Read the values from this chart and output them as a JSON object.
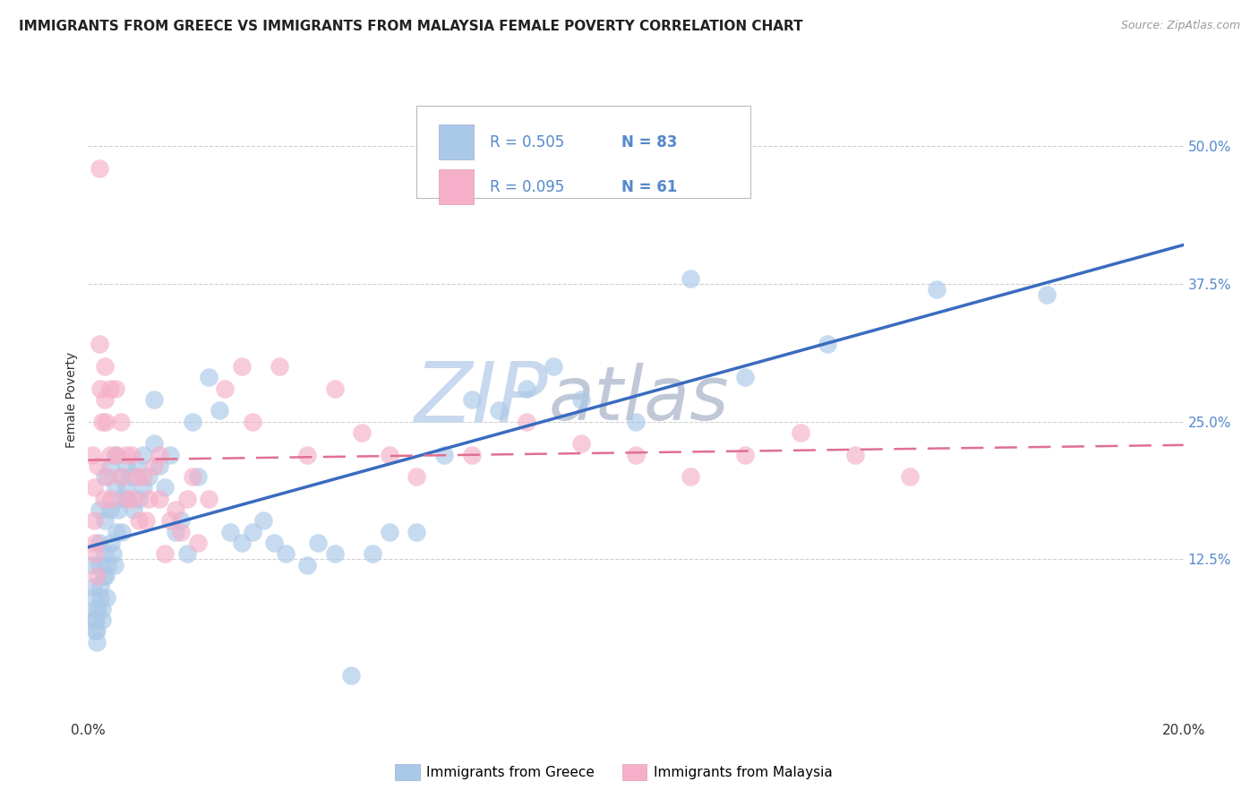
{
  "title": "IMMIGRANTS FROM GREECE VS IMMIGRANTS FROM MALAYSIA FEMALE POVERTY CORRELATION CHART",
  "source": "Source: ZipAtlas.com",
  "ylabel": "Female Poverty",
  "xlim": [
    0.0,
    0.2
  ],
  "ylim": [
    -0.02,
    0.56
  ],
  "right_yticks": [
    0.125,
    0.25,
    0.375,
    0.5
  ],
  "right_yticklabels": [
    "12.5%",
    "25.0%",
    "37.5%",
    "50.0%"
  ],
  "greece_R": 0.505,
  "greece_N": 83,
  "malaysia_R": 0.095,
  "malaysia_N": 61,
  "greece_color": "#aac8e8",
  "greece_line_color": "#3a6bbf",
  "malaysia_color": "#f5afc8",
  "malaysia_line_color": "#e07090",
  "bg_color": "#ffffff",
  "grid_color": "#d0d0d0",
  "watermark_zip_color": "#c8d8ee",
  "watermark_atlas_color": "#c0c8d8",
  "tick_color": "#5588cc",
  "label_color": "#333333",
  "greece_x": [
    0.0008,
    0.0009,
    0.001,
    0.001,
    0.0012,
    0.0013,
    0.0014,
    0.0015,
    0.0016,
    0.0018,
    0.002,
    0.002,
    0.002,
    0.0022,
    0.0022,
    0.0025,
    0.0026,
    0.0028,
    0.003,
    0.003,
    0.003,
    0.0032,
    0.0034,
    0.0036,
    0.004,
    0.004,
    0.0042,
    0.0045,
    0.0048,
    0.005,
    0.005,
    0.0052,
    0.0055,
    0.006,
    0.006,
    0.0062,
    0.007,
    0.007,
    0.0072,
    0.008,
    0.0082,
    0.009,
    0.0092,
    0.01,
    0.01,
    0.011,
    0.012,
    0.012,
    0.013,
    0.014,
    0.015,
    0.016,
    0.017,
    0.018,
    0.019,
    0.02,
    0.022,
    0.024,
    0.026,
    0.028,
    0.03,
    0.032,
    0.034,
    0.036,
    0.04,
    0.042,
    0.045,
    0.048,
    0.052,
    0.055,
    0.06,
    0.065,
    0.07,
    0.075,
    0.08,
    0.085,
    0.09,
    0.1,
    0.11,
    0.12,
    0.135,
    0.155,
    0.175
  ],
  "greece_y": [
    0.12,
    0.1,
    0.09,
    0.07,
    0.08,
    0.06,
    0.07,
    0.06,
    0.05,
    0.08,
    0.17,
    0.14,
    0.12,
    0.1,
    0.09,
    0.08,
    0.07,
    0.11,
    0.2,
    0.16,
    0.13,
    0.11,
    0.09,
    0.12,
    0.21,
    0.17,
    0.14,
    0.13,
    0.12,
    0.22,
    0.19,
    0.15,
    0.17,
    0.2,
    0.18,
    0.15,
    0.21,
    0.19,
    0.18,
    0.2,
    0.17,
    0.21,
    0.18,
    0.22,
    0.19,
    0.2,
    0.27,
    0.23,
    0.21,
    0.19,
    0.22,
    0.15,
    0.16,
    0.13,
    0.25,
    0.2,
    0.29,
    0.26,
    0.15,
    0.14,
    0.15,
    0.16,
    0.14,
    0.13,
    0.12,
    0.14,
    0.13,
    0.02,
    0.13,
    0.15,
    0.15,
    0.22,
    0.27,
    0.26,
    0.28,
    0.3,
    0.27,
    0.25,
    0.38,
    0.29,
    0.32,
    0.37,
    0.365
  ],
  "malaysia_x": [
    0.0008,
    0.001,
    0.001,
    0.0012,
    0.0013,
    0.0015,
    0.0017,
    0.002,
    0.002,
    0.0022,
    0.0025,
    0.0028,
    0.003,
    0.003,
    0.0032,
    0.0035,
    0.004,
    0.004,
    0.0042,
    0.005,
    0.0052,
    0.006,
    0.0062,
    0.007,
    0.0072,
    0.008,
    0.0082,
    0.009,
    0.0092,
    0.01,
    0.0105,
    0.011,
    0.012,
    0.013,
    0.013,
    0.014,
    0.015,
    0.016,
    0.017,
    0.018,
    0.019,
    0.02,
    0.022,
    0.025,
    0.028,
    0.03,
    0.035,
    0.04,
    0.045,
    0.05,
    0.055,
    0.06,
    0.07,
    0.08,
    0.09,
    0.1,
    0.11,
    0.12,
    0.13,
    0.14,
    0.15
  ],
  "malaysia_y": [
    0.22,
    0.19,
    0.16,
    0.14,
    0.13,
    0.11,
    0.21,
    0.48,
    0.32,
    0.28,
    0.25,
    0.18,
    0.3,
    0.27,
    0.25,
    0.2,
    0.28,
    0.22,
    0.18,
    0.28,
    0.22,
    0.25,
    0.2,
    0.22,
    0.18,
    0.22,
    0.18,
    0.2,
    0.16,
    0.2,
    0.16,
    0.18,
    0.21,
    0.22,
    0.18,
    0.13,
    0.16,
    0.17,
    0.15,
    0.18,
    0.2,
    0.14,
    0.18,
    0.28,
    0.3,
    0.25,
    0.3,
    0.22,
    0.28,
    0.24,
    0.22,
    0.2,
    0.22,
    0.25,
    0.23,
    0.22,
    0.2,
    0.22,
    0.24,
    0.22,
    0.2
  ]
}
